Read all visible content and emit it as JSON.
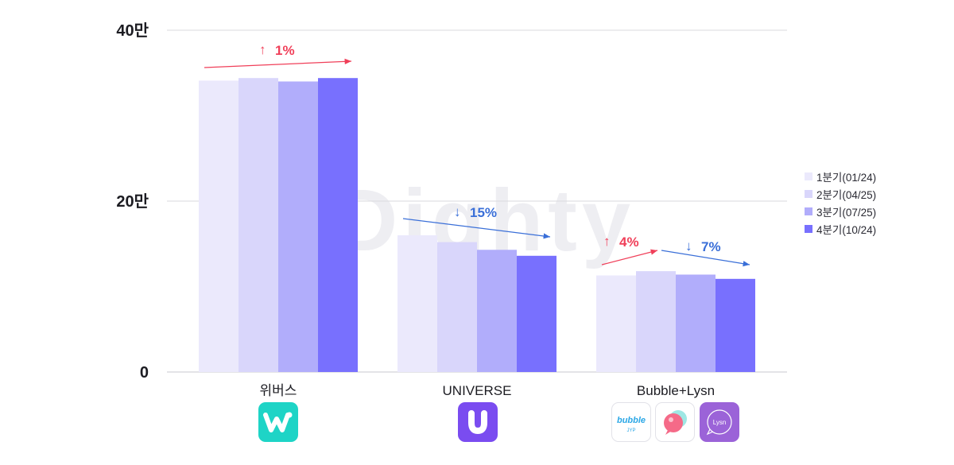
{
  "chart_data": {
    "type": "bar",
    "title": "",
    "xlabel": "",
    "ylabel": "",
    "ylim": [
      0,
      400000
    ],
    "yticks": [
      {
        "value": 0,
        "label": "0"
      },
      {
        "value": 200000,
        "label": "20만"
      },
      {
        "value": 400000,
        "label": "40만"
      }
    ],
    "grid": true,
    "legend_position": "right",
    "categories": [
      "위버스",
      "UNIVERSE",
      "Bubble+Lysn"
    ],
    "series": [
      {
        "name": "1분기(01/24)",
        "color": "#ebe9fc",
        "values": [
          341000,
          160000,
          113000
        ]
      },
      {
        "name": "2분기(04/25)",
        "color": "#d9d6fb",
        "values": [
          344000,
          152000,
          118000
        ]
      },
      {
        "name": "3분기(07/25)",
        "color": "#b1adfb",
        "values": [
          340000,
          143000,
          114000
        ]
      },
      {
        "name": "4분기(10/24)",
        "color": "#7870fe",
        "values": [
          344000,
          136000,
          109000
        ]
      }
    ],
    "annotations": [
      {
        "arrow": "↑",
        "text": "1%",
        "direction": "up",
        "color": "#f03f59"
      },
      {
        "arrow": "↓",
        "text": "15%",
        "direction": "down",
        "color": "#3a6fd8"
      },
      {
        "arrow": "↑",
        "text": "4%",
        "direction": "up",
        "color": "#f03f59"
      },
      {
        "arrow": "↓",
        "text": "7%",
        "direction": "down",
        "color": "#3a6fd8"
      }
    ],
    "watermark": "Dighty"
  },
  "apps": {
    "weverse": {
      "name": "weverse-icon",
      "glyph": "w",
      "color": "#1ed4c6"
    },
    "universe": {
      "name": "universe-icon",
      "glyph": "U",
      "color": "#7a4cf0"
    },
    "bubble": {
      "name": "bubble-icon",
      "glyph": "bubble",
      "sub": "JYP"
    },
    "lysn": {
      "name": "lysn-icon",
      "glyph": "Lysn"
    }
  }
}
